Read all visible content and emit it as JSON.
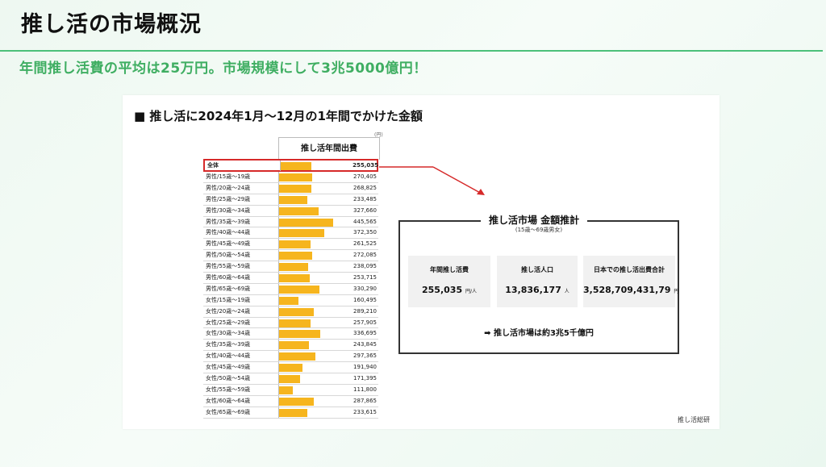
{
  "page": {
    "title": "推し活の市場概況",
    "subtitle": "年間推し活費の平均は25万円。市場規模にして3兆5000億円！"
  },
  "panel": {
    "heading": "■ 推し活に2024年1月～12月の1年間でかけた金額",
    "unit": "(円)",
    "column_header": "推し活年間出費",
    "source": "推し活総研"
  },
  "table": {
    "rows": [
      {
        "label": "全体",
        "value": "255,035"
      },
      {
        "label": "男性/15歳～19歳",
        "value": "270,405"
      },
      {
        "label": "男性/20歳～24歳",
        "value": "268,825"
      },
      {
        "label": "男性/25歳～29歳",
        "value": "233,485"
      },
      {
        "label": "男性/30歳～34歳",
        "value": "327,660"
      },
      {
        "label": "男性/35歳～39歳",
        "value": "445,565"
      },
      {
        "label": "男性/40歳～44歳",
        "value": "372,350"
      },
      {
        "label": "男性/45歳～49歳",
        "value": "261,525"
      },
      {
        "label": "男性/50歳～54歳",
        "value": "272,085"
      },
      {
        "label": "男性/55歳～59歳",
        "value": "238,095"
      },
      {
        "label": "男性/60歳～64歳",
        "value": "253,715"
      },
      {
        "label": "男性/65歳～69歳",
        "value": "330,290"
      },
      {
        "label": "女性/15歳～19歳",
        "value": "160,495"
      },
      {
        "label": "女性/20歳～24歳",
        "value": "289,210"
      },
      {
        "label": "女性/25歳～29歳",
        "value": "257,905"
      },
      {
        "label": "女性/30歳～34歳",
        "value": "336,695"
      },
      {
        "label": "女性/35歳～39歳",
        "value": "243,845"
      },
      {
        "label": "女性/40歳～44歳",
        "value": "297,365"
      },
      {
        "label": "女性/45歳～49歳",
        "value": "191,940"
      },
      {
        "label": "女性/50歳～54歳",
        "value": "171,395"
      },
      {
        "label": "女性/55歳～59歳",
        "value": "111,800"
      },
      {
        "label": "女性/60歳～64歳",
        "value": "287,865"
      },
      {
        "label": "女性/65歳～69歳",
        "value": "233,615"
      }
    ],
    "values_numeric": [
      255035,
      270405,
      268825,
      233485,
      327660,
      445565,
      372350,
      261525,
      272085,
      238095,
      253715,
      330290,
      160495,
      289210,
      257905,
      336695,
      243845,
      297365,
      191940,
      171395,
      111800,
      287865,
      233615
    ],
    "max_value": 500000
  },
  "market": {
    "title": "推し活市場 金額推計",
    "subtitle": "(15歳～69歳男女)",
    "stats": [
      {
        "label": "年間推し活費",
        "value": "255,035",
        "unit": "円/人"
      },
      {
        "label": "推し活人口",
        "value": "13,836,177",
        "unit": "人"
      },
      {
        "label": "日本での推し活出費合計",
        "value": "3,528,709,431,79",
        "unit": "円"
      }
    ],
    "result": "➡ 推し活市場は約3兆5千億円"
  },
  "colors": {
    "accent_green": "#3fae62",
    "bar_orange": "#f6b51e",
    "highlight_red": "#d62a2a"
  }
}
